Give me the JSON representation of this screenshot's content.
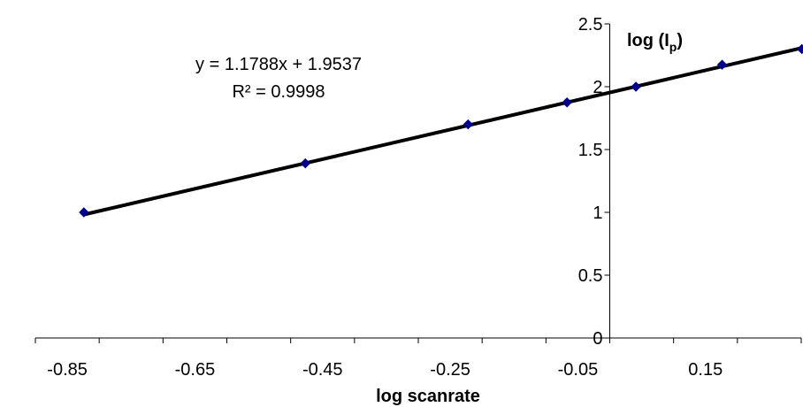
{
  "chart_data": {
    "type": "scatter",
    "xlabel": "log scanrate",
    "ylabel": {
      "main": "log (I",
      "sub": "p",
      "end": ")"
    },
    "xlim": [
      -0.9,
      0.3
    ],
    "ylim": [
      0,
      2.5
    ],
    "x_ticks": [
      -0.85,
      -0.65,
      -0.45,
      -0.25,
      -0.05,
      0.15
    ],
    "x_tick_labels": [
      "-0.85",
      "-0.65",
      "-0.45",
      "-0.25",
      "-0.05",
      "0.15"
    ],
    "y_ticks": [
      0,
      0.5,
      1,
      1.5,
      2,
      2.5
    ],
    "y_tick_labels": [
      "0",
      "0.5",
      "1",
      "1.5",
      "2",
      "2.5"
    ],
    "grid": false,
    "series": [
      {
        "x": [
          -0.824,
          -0.477,
          -0.222,
          -0.067,
          0.041,
          0.176,
          0.301
        ],
        "y": [
          1.0,
          1.39,
          1.7,
          1.875,
          2.0,
          2.175,
          2.3
        ],
        "marker_color": "#00008B"
      }
    ],
    "trendline": {
      "slope": 1.1788,
      "intercept": 1.9537,
      "x_range": [
        -0.824,
        0.301
      ],
      "color": "#000000",
      "equation": "y = 1.1788x + 1.9537",
      "r_squared": "R² = 0.9998"
    }
  }
}
